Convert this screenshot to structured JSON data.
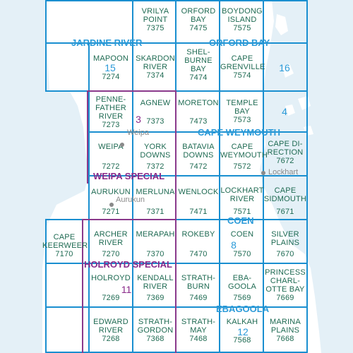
{
  "colors": {
    "sea": "#e4f0f7",
    "land": "#ffffff",
    "grid": "#1a8fd0",
    "region_border": "#8a3a8c",
    "tile_text": "#1e6a52",
    "region_text": "#2a9ad8",
    "special_text": "#8a2a8a",
    "town": "#8a8a8a"
  },
  "tiles": [
    {
      "id": "vrilya-point",
      "name": "VRILYA\nPOINT",
      "number": "7375"
    },
    {
      "id": "orford-bay",
      "name": "ORFORD\nBAY",
      "number": "7475"
    },
    {
      "id": "boydong-island",
      "name": "BOYDONG\nISLAND",
      "number": "7575"
    },
    {
      "id": "mapoon",
      "name": "MAPOON",
      "number": "7274"
    },
    {
      "id": "skardon-river",
      "name": "SKARDON\nRIVER",
      "number": "7374"
    },
    {
      "id": "shelburne-bay",
      "name": "SHEL-\nBURNE\nBAY",
      "number": "7474"
    },
    {
      "id": "cape-grenville",
      "name": "CAPE\nGRENVILLE",
      "number": "7574"
    },
    {
      "id": "pennefather-river",
      "name": "PENNE-\nFATHER\nRIVER",
      "number": "7273"
    },
    {
      "id": "agnew",
      "name": "AGNEW",
      "number": "7373"
    },
    {
      "id": "moreton",
      "name": "MORETON",
      "number": "7473"
    },
    {
      "id": "temple-bay",
      "name": "TEMPLE\nBAY",
      "number": "7573"
    },
    {
      "id": "weipa",
      "name": "WEIPA",
      "number": "7272"
    },
    {
      "id": "york-downs",
      "name": "YORK\nDOWNS",
      "number": "7372"
    },
    {
      "id": "batavia-downs",
      "name": "BATAVIA\nDOWNS",
      "number": "7472"
    },
    {
      "id": "cape-weymouth",
      "name": "CAPE\nWEYMOUTH",
      "number": "7572"
    },
    {
      "id": "cape-direction",
      "name": "CAPE DI-\nRECTION",
      "number": "7672"
    },
    {
      "id": "aurukun",
      "name": "AURUKUN",
      "number": "7271"
    },
    {
      "id": "merluna",
      "name": "MERLUNA",
      "number": "7371"
    },
    {
      "id": "wenlock",
      "name": "WENLOCK",
      "number": "7471"
    },
    {
      "id": "lockhart-river",
      "name": "LOCKHART\nRIVER",
      "number": "7571"
    },
    {
      "id": "cape-sidmouth",
      "name": "CAPE\nSIDMOUTH",
      "number": "7671"
    },
    {
      "id": "cape-keerweer",
      "name": "CAPE\nKEERWEER",
      "number": "7170"
    },
    {
      "id": "archer-river",
      "name": "ARCHER\nRIVER",
      "number": "7270"
    },
    {
      "id": "merapah",
      "name": "MERAPAH",
      "number": "7370"
    },
    {
      "id": "rokeby",
      "name": "ROKEBY",
      "number": "7470"
    },
    {
      "id": "coen",
      "name": "COEN",
      "number": "7570"
    },
    {
      "id": "silver-plains",
      "name": "SILVER\nPLAINS",
      "number": "7670"
    },
    {
      "id": "holroyd",
      "name": "HOLROYD",
      "number": "7269"
    },
    {
      "id": "kendall-river",
      "name": "KENDALL\nRIVER",
      "number": "7369"
    },
    {
      "id": "strathburn",
      "name": "STRATH-\nBURN",
      "number": "7469"
    },
    {
      "id": "ebagoola",
      "name": "EBA-\nGOOLA",
      "number": "7569"
    },
    {
      "id": "princess-charlotte-bay",
      "name": "PRINCESS\nCHARL-\nOTTE BAY",
      "number": "7669"
    },
    {
      "id": "edward-river",
      "name": "EDWARD\nRIVER",
      "number": "7268"
    },
    {
      "id": "strathgordon",
      "name": "STRATH-\nGORDON",
      "number": "7368"
    },
    {
      "id": "strathmay",
      "name": "STRATH-\nMAY",
      "number": "7468"
    },
    {
      "id": "kalkah",
      "name": "KALKAH",
      "number": "7568"
    },
    {
      "id": "marina-plains",
      "name": "MARINA\nPLAINS",
      "number": "7668"
    }
  ],
  "regions": [
    {
      "id": "jardine-river",
      "name": "JARDINE RIVER",
      "number": "15"
    },
    {
      "id": "orford-bay",
      "name": "ORFORD BAY",
      "number": "16"
    },
    {
      "id": "cape-weymouth",
      "name": "CAPE WEYMOUTH",
      "number": "4"
    },
    {
      "id": "coen",
      "name": "COEN",
      "number": "8"
    },
    {
      "id": "ebagoola",
      "name": "EBAGOOLA",
      "number": "12"
    }
  ],
  "specials": [
    {
      "id": "weipa-special",
      "name": "WEIPA SPECIAL",
      "number": "3"
    },
    {
      "id": "holroyd-special",
      "name": "HOLROYD SPECIAL",
      "number": "11"
    }
  ],
  "places": [
    {
      "id": "weipa",
      "name": "Weipa"
    },
    {
      "id": "aurukun",
      "name": "Aurukun"
    },
    {
      "id": "lockhart",
      "name": "Lockhart"
    }
  ]
}
